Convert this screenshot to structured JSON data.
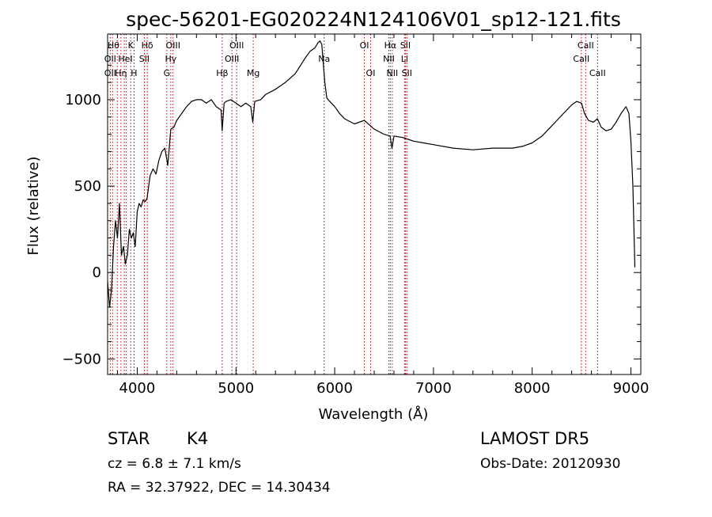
{
  "chart_data": {
    "type": "line",
    "title": "spec-56201-EG020224N124106V01_sp12-121.fits",
    "xlabel": "Wavelength (Å)",
    "ylabel": "Flux (relative)",
    "xlim": [
      3700,
      9100
    ],
    "ylim": [
      -590,
      1380
    ],
    "xticks": [
      4000,
      5000,
      6000,
      7000,
      8000,
      9000
    ],
    "xtick_labels": [
      "4000",
      "5000",
      "6000",
      "7000",
      "8000",
      "9000"
    ],
    "yticks": [
      -500,
      0,
      500,
      1000
    ],
    "ytick_labels": [
      "−500",
      "0",
      "500",
      "1000"
    ],
    "grid": false,
    "legend": "none",
    "series": [
      {
        "x": [
          3700,
          3720,
          3740,
          3760,
          3780,
          3800,
          3820,
          3840,
          3860,
          3880,
          3900,
          3920,
          3940,
          3960,
          3980,
          4000,
          4020,
          4040,
          4060,
          4080,
          4100,
          4130,
          4160,
          4190,
          4220,
          4250,
          4280,
          4310,
          4340,
          4370,
          4400,
          4450,
          4500,
          4550,
          4600,
          4650,
          4700,
          4750,
          4800,
          4850,
          4860,
          4880,
          4900,
          4950,
          5000,
          5050,
          5100,
          5150,
          5170,
          5190,
          5250,
          5300,
          5400,
          5500,
          5600,
          5700,
          5750,
          5800,
          5830,
          5850,
          5870,
          5880,
          5900,
          5920,
          5950,
          6000,
          6050,
          6100,
          6200,
          6300,
          6400,
          6500,
          6560,
          6580,
          6600,
          6700,
          6800,
          6900,
          7000,
          7200,
          7400,
          7600,
          7800,
          7900,
          8000,
          8100,
          8200,
          8300,
          8400,
          8450,
          8500,
          8530,
          8570,
          8620,
          8660,
          8700,
          8750,
          8800,
          8850,
          8900,
          8950,
          8980,
          9000,
          9020,
          9040
        ],
        "y": [
          -50,
          -200,
          -100,
          150,
          300,
          200,
          400,
          100,
          150,
          50,
          100,
          250,
          200,
          230,
          150,
          350,
          400,
          380,
          420,
          410,
          430,
          560,
          600,
          570,
          650,
          700,
          720,
          620,
          830,
          840,
          880,
          920,
          960,
          990,
          1000,
          1000,
          980,
          1000,
          960,
          940,
          820,
          980,
          990,
          1000,
          980,
          960,
          980,
          960,
          870,
          990,
          1000,
          1030,
          1060,
          1100,
          1150,
          1240,
          1280,
          1300,
          1330,
          1340,
          1320,
          1240,
          1100,
          1010,
          990,
          960,
          920,
          890,
          860,
          880,
          830,
          800,
          790,
          720,
          790,
          780,
          760,
          750,
          740,
          720,
          710,
          720,
          720,
          730,
          750,
          790,
          850,
          910,
          970,
          990,
          980,
          920,
          880,
          870,
          890,
          840,
          820,
          830,
          870,
          920,
          960,
          920,
          760,
          500,
          30
        ]
      }
    ],
    "lines": [
      {
        "x": 3727,
        "labels": [
          "OII"
        ]
      },
      {
        "x": 3750,
        "labels": [
          "Hθ"
        ]
      },
      {
        "x": 3798,
        "labels": [
          "Hη"
        ]
      },
      {
        "x": 3835,
        "labels": [
          "Hη"
        ]
      },
      {
        "x": 3869,
        "labels": [
          "HeI"
        ]
      },
      {
        "x": 3889,
        "labels": [
          "HeI"
        ]
      },
      {
        "x": 3934,
        "labels": [
          "K"
        ]
      },
      {
        "x": 3968,
        "labels": [
          "H"
        ]
      },
      {
        "x": 4072,
        "labels": [
          "SII"
        ]
      },
      {
        "x": 4102,
        "labels": [
          "Hδ"
        ]
      },
      {
        "x": 4300,
        "labels": [
          "G"
        ]
      },
      {
        "x": 4340,
        "labels": [
          "Hγ"
        ]
      },
      {
        "x": 4363,
        "labels": [
          "OIII"
        ]
      },
      {
        "x": 4861,
        "labels": [
          "Hβ"
        ]
      },
      {
        "x": 4959,
        "labels": [
          "OIII"
        ]
      },
      {
        "x": 5007,
        "labels": [
          "OIII"
        ]
      },
      {
        "x": 5175,
        "labels": [
          "Mg"
        ]
      },
      {
        "x": 5893,
        "labels": [
          "Na"
        ]
      },
      {
        "x": 6300,
        "labels": [
          "OI"
        ]
      },
      {
        "x": 6364,
        "labels": [
          "OI"
        ]
      },
      {
        "x": 6548,
        "labels": [
          "NII"
        ]
      },
      {
        "x": 6563,
        "labels": [
          "Hα"
        ]
      },
      {
        "x": 6583,
        "labels": [
          "NII"
        ]
      },
      {
        "x": 6707,
        "labels": [
          "Li"
        ]
      },
      {
        "x": 6716,
        "labels": [
          "SII"
        ]
      },
      {
        "x": 6731,
        "labels": [
          "SII"
        ]
      },
      {
        "x": 8498,
        "labels": [
          "CaII"
        ]
      },
      {
        "x": 8542,
        "labels": [
          "CaII"
        ]
      },
      {
        "x": 8662,
        "labels": [
          "CaII"
        ]
      }
    ],
    "line_label_rows": [
      [
        {
          "text": "Hθ",
          "x": 3760
        },
        {
          "text": "K",
          "x": 3934
        },
        {
          "text": "Hδ",
          "x": 4102
        },
        {
          "text": "OIII",
          "x": 4363
        },
        {
          "text": "OIII",
          "x": 5007
        },
        {
          "text": "OI",
          "x": 6300
        },
        {
          "text": "Hα",
          "x": 6563
        },
        {
          "text": "SII",
          "x": 6716
        },
        {
          "text": "CaII",
          "x": 8542
        }
      ],
      [
        {
          "text": "OII",
          "x": 3727
        },
        {
          "text": "HeI",
          "x": 3880
        },
        {
          "text": "SII",
          "x": 4072
        },
        {
          "text": "Hγ",
          "x": 4340
        },
        {
          "text": "OIII",
          "x": 4959
        },
        {
          "text": "Na",
          "x": 5893
        },
        {
          "text": "NII",
          "x": 6548
        },
        {
          "text": "Li",
          "x": 6707
        },
        {
          "text": "CaII",
          "x": 8498
        }
      ],
      [
        {
          "text": "OII",
          "x": 3727
        },
        {
          "text": "Hη",
          "x": 3835
        },
        {
          "text": "H",
          "x": 3968
        },
        {
          "text": "G",
          "x": 4300
        },
        {
          "text": "Hβ",
          "x": 4861
        },
        {
          "text": "Mg",
          "x": 5175
        },
        {
          "text": "OI",
          "x": 6364
        },
        {
          "text": "NII",
          "x": 6583
        },
        {
          "text": "SII",
          "x": 6731
        },
        {
          "text": "CaII",
          "x": 8662
        }
      ]
    ],
    "line_color": "#c00000",
    "series_color": "#000000"
  },
  "info": {
    "object_class": "STAR",
    "subclass": "K4",
    "survey": "LAMOST DR5",
    "cz": "cz = 6.8 ± 7.1 km/s",
    "obs_date": "Obs-Date: 20120930",
    "coords": "RA =  32.37922, DEC =  14.30434"
  }
}
